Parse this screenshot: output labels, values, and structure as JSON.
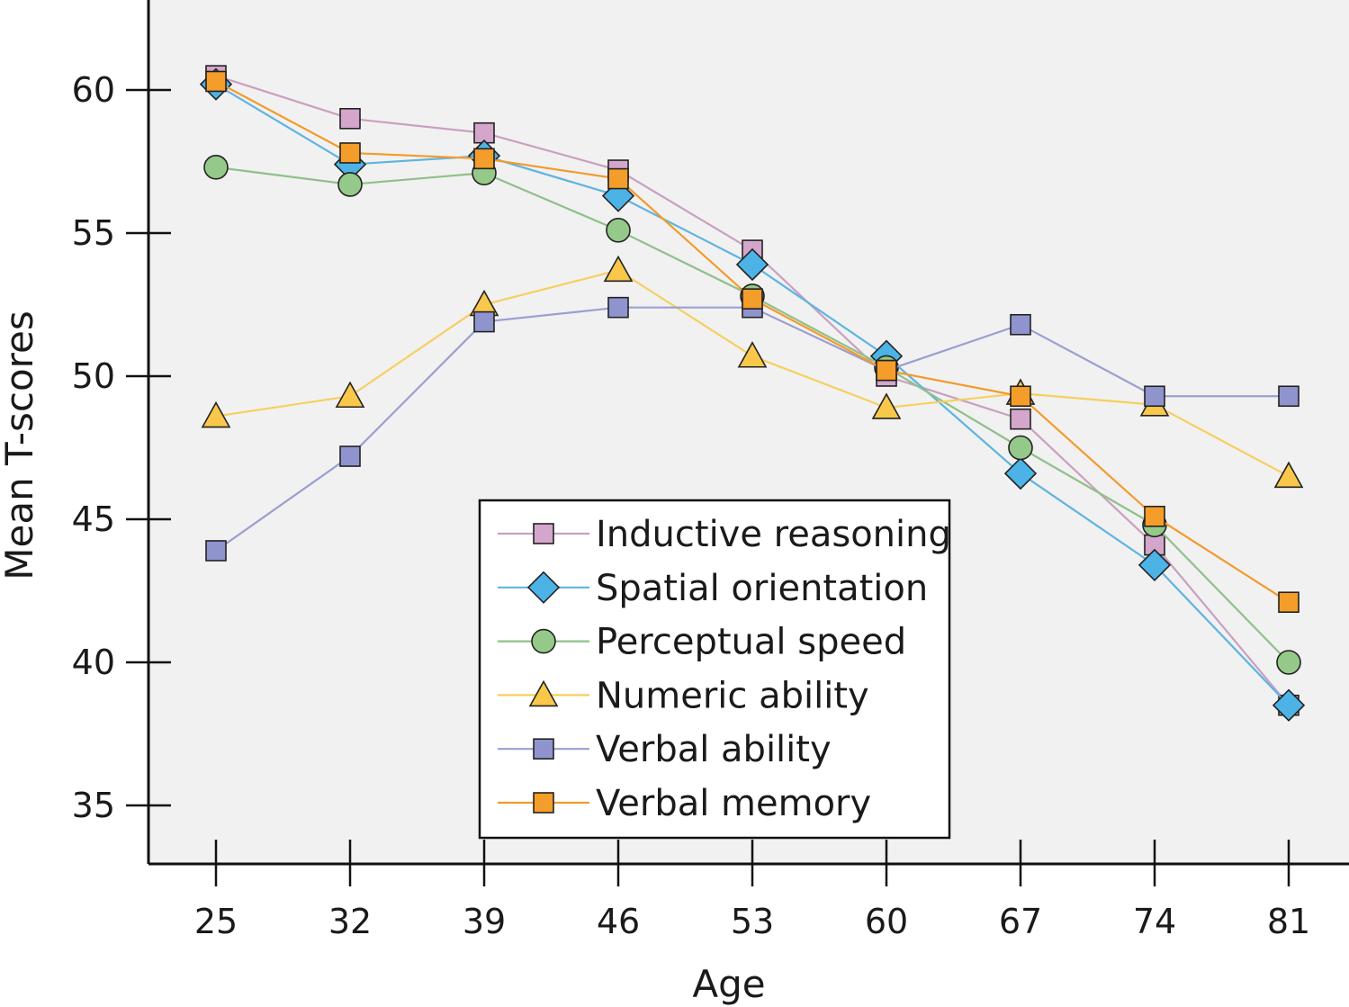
{
  "chart_data": {
    "type": "line",
    "title": "",
    "xlabel": "Age",
    "ylabel": "Mean T-scores",
    "x": [
      25,
      32,
      39,
      46,
      53,
      60,
      67,
      74,
      81
    ],
    "x_tick_labels": [
      "25",
      "32",
      "39",
      "46",
      "53",
      "60",
      "67",
      "74",
      "81"
    ],
    "y_ticks": [
      35,
      40,
      45,
      50,
      55,
      60
    ],
    "y_tick_labels": [
      "35",
      "40",
      "45",
      "50",
      "55",
      "60"
    ],
    "ylim": [
      33,
      63
    ],
    "grid": false,
    "legend_position": "bottom-center",
    "series": [
      {
        "name": "Inductive reasoning",
        "marker": "square",
        "line_color": "#c9a0c0",
        "marker_color": "#d4a6cc",
        "values": [
          60.5,
          59.0,
          58.5,
          57.2,
          54.4,
          50.0,
          48.5,
          44.1,
          38.5
        ]
      },
      {
        "name": "Spatial orientation",
        "marker": "diamond",
        "line_color": "#5fb4e0",
        "marker_color": "#4db3e6",
        "values": [
          60.2,
          57.4,
          57.7,
          56.3,
          53.9,
          50.7,
          46.6,
          43.4,
          38.5
        ]
      },
      {
        "name": "Perceptual speed",
        "marker": "circle",
        "line_color": "#8fc08a",
        "marker_color": "#94c98a",
        "values": [
          57.3,
          56.7,
          57.1,
          55.1,
          52.8,
          50.3,
          47.5,
          44.8,
          40.0
        ]
      },
      {
        "name": "Numeric ability",
        "marker": "triangle",
        "line_color": "#f7cf5e",
        "marker_color": "#f9c84a",
        "values": [
          48.6,
          49.3,
          52.5,
          53.7,
          50.7,
          48.9,
          49.4,
          49.0,
          46.5
        ]
      },
      {
        "name": "Verbal ability",
        "marker": "square",
        "line_color": "#9b9fd0",
        "marker_color": "#8f94cf",
        "values": [
          43.9,
          47.2,
          51.9,
          52.4,
          52.4,
          50.2,
          51.8,
          49.3,
          49.3
        ]
      },
      {
        "name": "Verbal memory",
        "marker": "square",
        "line_color": "#f39a2b",
        "marker_color": "#f59d2a",
        "values": [
          60.3,
          57.8,
          57.6,
          56.9,
          52.7,
          50.2,
          49.3,
          45.1,
          42.1
        ]
      }
    ]
  }
}
